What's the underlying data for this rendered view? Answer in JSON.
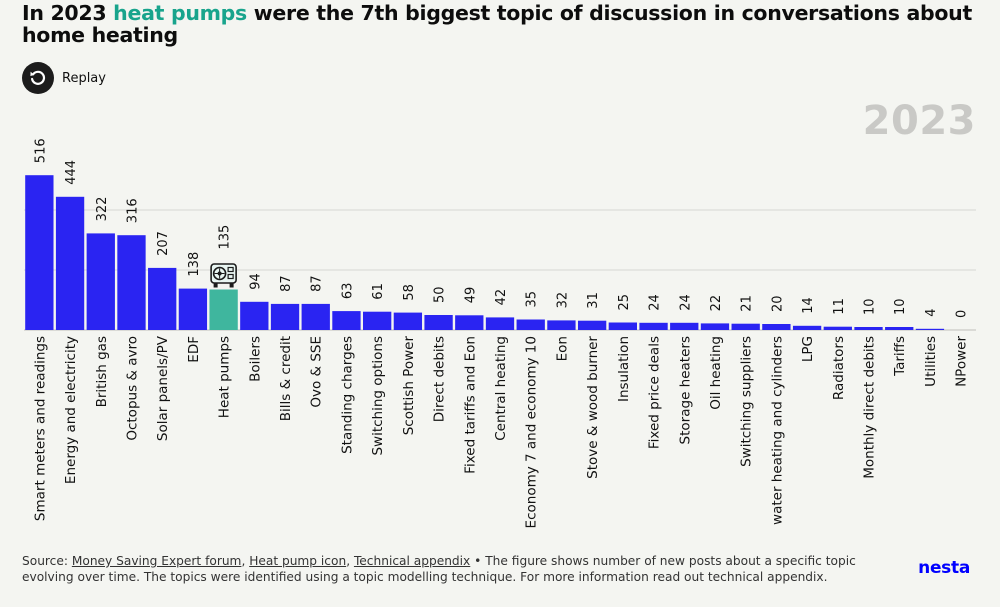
{
  "title": {
    "prefix": "In 2023",
    "highlight": "heat pumps",
    "suffix": "were the 7th biggest topic of discussion in conversations about home heating"
  },
  "replay": {
    "label": "Replay",
    "icon": "replay-icon"
  },
  "year_label": "2023",
  "colors": {
    "bar": "#2a24f2",
    "highlight_bar": "#3fb69e",
    "title_highlight": "#18a48c",
    "brand": "#0000ff",
    "grid": "#d6d6d2"
  },
  "chart_data": {
    "type": "bar",
    "categories": [
      "Smart meters and readings",
      "Energy and electricity",
      "British gas",
      "Octopus & avro",
      "Solar panels/PV",
      "EDF",
      "Heat pumps",
      "Boilers",
      "Bills & credit",
      "Ovo & SSE",
      "Standing charges",
      "Switching options",
      "Scottish Power",
      "Direct debits",
      "Fixed tariffs and Eon",
      "Central heating",
      "Economy 7 and economy 10",
      "Eon",
      "Stove & wood burner",
      "Insulation",
      "Fixed price deals",
      "Storage heaters",
      "Oil heating",
      "Switching suppliers",
      "water heating and cylinders",
      "LPG",
      "Radiators",
      "Monthly direct debits",
      "Tariffs",
      "Utilities",
      "NPower"
    ],
    "values": [
      516,
      444,
      322,
      316,
      207,
      138,
      135,
      94,
      87,
      87,
      63,
      61,
      58,
      50,
      49,
      42,
      35,
      32,
      31,
      25,
      24,
      24,
      22,
      21,
      20,
      14,
      11,
      10,
      10,
      4,
      0
    ],
    "highlight": "Heat pumps",
    "highlight_icon": "heat-pump-icon",
    "ylim": [
      0,
      700
    ],
    "grid": true
  },
  "footer": {
    "source_label": "Source:",
    "links": [
      "Money Saving Expert forum",
      "Heat pump icon",
      "Technical appendix"
    ],
    "separator": ",",
    "bullet": "•",
    "note": "The figure shows number of new posts about a specific topic evolving over time. The topics were identified using a topic modelling technique. For more information read out technical appendix."
  },
  "brand": "nesta"
}
